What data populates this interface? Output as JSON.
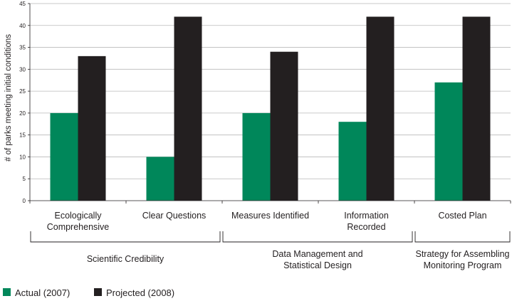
{
  "chart_data": {
    "type": "bar",
    "ylabel": "# of parks meeting initial conditions",
    "ylim": [
      0,
      45
    ],
    "yticks": [
      0,
      5,
      10,
      15,
      20,
      25,
      30,
      35,
      40,
      45
    ],
    "grid": true,
    "legend_position": "bottom-left",
    "categories": [
      [
        "Ecologically",
        "Comprehensive"
      ],
      [
        "Clear Questions"
      ],
      [
        "Measures Identified"
      ],
      [
        "Information",
        "Recorded"
      ],
      [
        "Costed Plan"
      ]
    ],
    "series": [
      {
        "name": "Actual (2007)",
        "color": "#00875a",
        "values": [
          20,
          10,
          20,
          18,
          27
        ]
      },
      {
        "name": "Projected (2008)",
        "color": "#231f20",
        "values": [
          33,
          42,
          34,
          42,
          42
        ]
      }
    ],
    "groups": [
      {
        "label": [
          "Scientific Credibility"
        ],
        "span": [
          0,
          1
        ]
      },
      {
        "label": [
          "Data Management and",
          "Statistical Design"
        ],
        "span": [
          2,
          3
        ]
      },
      {
        "label": [
          "Strategy for Assembling",
          "Monitoring Program"
        ],
        "span": [
          4,
          4
        ]
      }
    ]
  }
}
